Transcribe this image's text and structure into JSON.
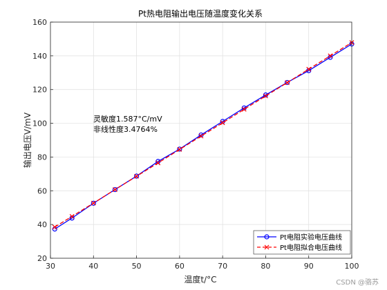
{
  "chart_data": {
    "type": "line",
    "title": "Pt热电阻输出电压随温度变化关系",
    "xlabel": "温度t/°C",
    "ylabel": "输出电压V/mV",
    "xlim": [
      30,
      100
    ],
    "ylim": [
      20,
      160
    ],
    "xticks": [
      30,
      40,
      50,
      60,
      70,
      80,
      90,
      100
    ],
    "yticks": [
      20,
      40,
      60,
      80,
      100,
      120,
      140,
      160
    ],
    "grid": true,
    "legend_position": "bottom-right",
    "annotations": [
      "灵敏度1.587°C/mV",
      "非线性度3.4764%"
    ],
    "series": [
      {
        "name": "Pt电阻实验电压曲线",
        "color": "#0000ff",
        "style": "solid",
        "marker": "circle",
        "x": [
          31,
          35,
          40,
          45,
          50,
          55,
          60,
          65,
          70,
          75,
          80,
          85,
          90,
          95,
          100
        ],
        "y": [
          37.3,
          43.8,
          52.6,
          60.7,
          68.7,
          77.4,
          84.7,
          93.1,
          101.1,
          109.1,
          116.8,
          124.2,
          131.2,
          139.1,
          147.0
        ]
      },
      {
        "name": "Pt电阻拟合电压曲线",
        "color": "#ff0000",
        "style": "dashed",
        "marker": "x",
        "x": [
          31,
          35,
          40,
          45,
          50,
          55,
          60,
          65,
          70,
          75,
          80,
          85,
          90,
          95,
          100
        ],
        "y": [
          38.5,
          44.8,
          52.7,
          60.7,
          68.6,
          76.5,
          84.5,
          92.4,
          100.3,
          108.3,
          116.2,
          124.1,
          132.1,
          140.0,
          147.9
        ]
      }
    ]
  },
  "watermark": "CSDN @骆苏"
}
